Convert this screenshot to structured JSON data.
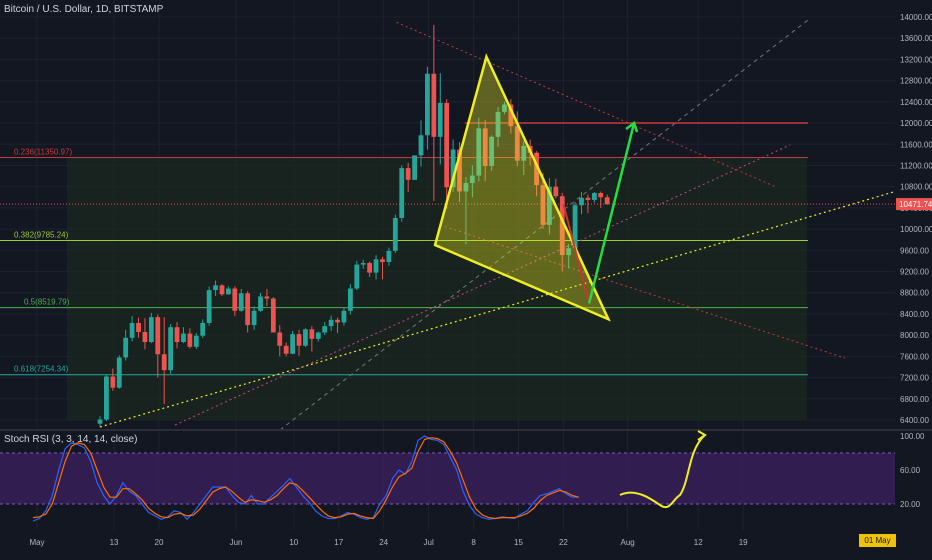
{
  "header": {
    "title": "Bitcoin / U.S. Dollar, 1D, BITSTAMP"
  },
  "stoch": {
    "title": "Stoch RSI (3, 3, 14, 14, close)"
  },
  "date_badge": "01 May '20",
  "colors": {
    "bg": "#131722",
    "up": "#26a69a",
    "down": "#ef5350",
    "grid": "#1e2230",
    "triangle": "#eeee22",
    "arrow_up": "#22dd44",
    "arrow_down": "#cc3333",
    "stoch_k": "#2962ff",
    "stoch_d": "#ff6d00",
    "stoch_band": "#3a1f5c",
    "price_label": "#ef5350"
  },
  "chart_data": [
    {
      "type": "candlestick",
      "title": "Bitcoin / U.S. Dollar, 1D, BITSTAMP",
      "ylim": [
        6200,
        14200
      ],
      "y_ticks": [
        6400,
        6800,
        7200,
        7600,
        8000,
        8400,
        8800,
        9200,
        9600,
        10000,
        10400,
        10800,
        11200,
        11600,
        12000,
        12400,
        12800,
        13200,
        13600,
        14000
      ],
      "x_ticks": [
        "May",
        "13",
        "20",
        "Jun",
        "10",
        "17",
        "24",
        "Jul",
        "8",
        "15",
        "22",
        "Aug",
        "12",
        "19"
      ],
      "current_price_label": "10471.74",
      "fib_levels": [
        {
          "label": "0.236(11350.97)",
          "value": 11350.97
        },
        {
          "label": "0.382(9785.24)",
          "value": 9785.24
        },
        {
          "label": "0.5(8519.79)",
          "value": 8519.79
        },
        {
          "label": "0.618(7254.34)",
          "value": 7254.34
        }
      ],
      "candles_ohlc": [
        [
          6330,
          6470,
          6280,
          6410
        ],
        [
          6410,
          7250,
          6380,
          7220
        ],
        [
          7220,
          7370,
          6950,
          7010
        ],
        [
          7010,
          7620,
          6990,
          7580
        ],
        [
          7580,
          8100,
          7520,
          7950
        ],
        [
          7950,
          8360,
          7880,
          8230
        ],
        [
          8230,
          8330,
          7950,
          8060
        ],
        [
          8060,
          8320,
          7730,
          7870
        ],
        [
          7870,
          8420,
          7850,
          8340
        ],
        [
          8340,
          8390,
          7200,
          7640
        ],
        [
          7640,
          8340,
          6700,
          7340
        ],
        [
          7340,
          8210,
          7270,
          8150
        ],
        [
          8150,
          8250,
          7750,
          7870
        ],
        [
          7870,
          8150,
          7850,
          8030
        ],
        [
          8030,
          8130,
          7750,
          7780
        ],
        [
          7780,
          8040,
          7740,
          7990
        ],
        [
          7990,
          8300,
          7950,
          8230
        ],
        [
          8230,
          8920,
          8180,
          8850
        ],
        [
          8850,
          9030,
          8740,
          8940
        ],
        [
          8940,
          8960,
          8740,
          8770
        ],
        [
          8770,
          8920,
          8760,
          8880
        ],
        [
          8880,
          8920,
          8360,
          8460
        ],
        [
          8460,
          8870,
          8440,
          8790
        ],
        [
          8790,
          8830,
          8050,
          8190
        ],
        [
          8190,
          8540,
          8100,
          8460
        ],
        [
          8460,
          8800,
          8440,
          8730
        ],
        [
          8730,
          8870,
          8550,
          8690
        ],
        [
          8690,
          8720,
          8050,
          8050
        ],
        [
          8050,
          8190,
          7600,
          7800
        ],
        [
          7800,
          7860,
          7600,
          7650
        ],
        [
          7650,
          8080,
          7640,
          8020
        ],
        [
          8020,
          8100,
          7610,
          7800
        ],
        [
          7800,
          8130,
          7780,
          8110
        ],
        [
          8110,
          8170,
          7690,
          7930
        ],
        [
          7930,
          8070,
          7880,
          8050
        ],
        [
          8050,
          8250,
          8000,
          8170
        ],
        [
          8170,
          8370,
          8080,
          8290
        ],
        [
          8290,
          8330,
          8040,
          8240
        ],
        [
          8240,
          8520,
          8180,
          8460
        ],
        [
          8460,
          8960,
          8390,
          8880
        ],
        [
          8880,
          9400,
          8850,
          9330
        ],
        [
          9330,
          9420,
          9250,
          9360
        ],
        [
          9360,
          9390,
          9100,
          9180
        ],
        [
          9180,
          9510,
          9050,
          9430
        ],
        [
          9430,
          9480,
          9050,
          9380
        ],
        [
          9380,
          9650,
          9310,
          9590
        ],
        [
          9590,
          10270,
          9550,
          10210
        ],
        [
          10210,
          11200,
          10140,
          11150
        ],
        [
          11150,
          11250,
          10700,
          10930
        ],
        [
          10930,
          11380,
          10930,
          11390
        ],
        [
          11390,
          12050,
          11180,
          11770
        ],
        [
          11770,
          13060,
          11500,
          12930
        ],
        [
          12930,
          13850,
          10530,
          11740
        ],
        [
          11740,
          12940,
          11220,
          12380
        ],
        [
          12380,
          12450,
          10380,
          10790
        ],
        [
          10790,
          11690,
          10700,
          11500
        ],
        [
          11500,
          11640,
          10510,
          10710
        ],
        [
          10710,
          10980,
          9710,
          10870
        ],
        [
          10870,
          11200,
          10600,
          11010
        ],
        [
          11010,
          12100,
          10900,
          11900
        ],
        [
          11900,
          12060,
          10900,
          11190
        ],
        [
          11190,
          11770,
          11100,
          11740
        ],
        [
          11740,
          12300,
          11550,
          12210
        ],
        [
          12210,
          12400,
          12170,
          12350
        ],
        [
          12350,
          12450,
          11800,
          11940
        ],
        [
          11940,
          12220,
          11180,
          11290
        ],
        [
          11290,
          11660,
          11020,
          11570
        ],
        [
          11570,
          11690,
          11200,
          11440
        ],
        [
          11440,
          11470,
          10620,
          10830
        ],
        [
          10830,
          11060,
          10010,
          10080
        ],
        [
          10080,
          10960,
          9900,
          10800
        ],
        [
          10800,
          10950,
          10580,
          10620
        ],
        [
          10620,
          10680,
          9200,
          9510
        ],
        [
          9510,
          9720,
          9260,
          9640
        ],
        [
          9640,
          10510,
          9590,
          10450
        ],
        [
          10450,
          10700,
          10280,
          10590
        ],
        [
          10590,
          10650,
          10300,
          10550
        ],
        [
          10550,
          10700,
          10500,
          10680
        ],
        [
          10680,
          10710,
          10400,
          10600
        ],
        [
          10600,
          10650,
          10460,
          10470
        ]
      ],
      "annotations": {
        "triangle": {
          "top": [
            "2019-07-10",
            13250
          ],
          "left": [
            "2019-07-02",
            9700
          ],
          "right": [
            "2019-07-29",
            8300
          ]
        },
        "red_arrow": {
          "from": [
            "2019-07-22",
            10470
          ],
          "to": [
            "2019-07-26",
            8600
          ]
        },
        "green_arrow": {
          "from": [
            "2019-07-26",
            8600
          ],
          "to": [
            "2019-08-02",
            12000
          ]
        },
        "horizontal_red_level": 12000,
        "resistance_descending": {
          "from": [
            "2019-06-26",
            13900
          ],
          "to": [
            "2019-08-24",
            10800
          ]
        }
      }
    },
    {
      "type": "line",
      "title": "Stoch RSI (3, 3, 14, 14, close)",
      "ylim": [
        0,
        100
      ],
      "y_ticks": [
        20.0,
        60.0,
        100.0
      ],
      "bands": [
        20,
        80
      ],
      "series": [
        {
          "values": [
            0,
            3,
            12,
            30,
            60,
            85,
            92,
            90,
            86,
            70,
            45,
            30,
            20,
            30,
            45,
            35,
            30,
            20,
            10,
            6,
            2,
            5,
            12,
            10,
            2,
            10,
            20,
            30,
            40,
            40,
            40,
            30,
            22,
            20,
            30,
            20,
            20,
            28,
            35,
            42,
            50,
            40,
            30,
            22,
            12,
            6,
            3,
            3,
            6,
            10,
            8,
            4,
            2,
            4,
            20,
            30,
            50,
            60,
            55,
            70,
            95,
            100,
            96,
            95,
            90,
            75,
            60,
            35,
            18,
            8,
            4,
            2,
            3,
            5,
            4,
            3,
            8,
            12,
            22,
            30,
            32,
            35,
            38,
            32,
            28,
            28
          ]
        },
        {
          "values": [
            4,
            5,
            8,
            20,
            45,
            70,
            88,
            92,
            90,
            80,
            60,
            40,
            28,
            28,
            38,
            38,
            32,
            25,
            15,
            9,
            5,
            4,
            8,
            9,
            6,
            7,
            14,
            24,
            34,
            38,
            40,
            35,
            28,
            22,
            25,
            24,
            22,
            25,
            30,
            38,
            45,
            43,
            36,
            28,
            20,
            12,
            6,
            4,
            5,
            8,
            9,
            6,
            4,
            3,
            12,
            25,
            40,
            52,
            56,
            62,
            82,
            96,
            98,
            97,
            93,
            82,
            68,
            48,
            28,
            14,
            7,
            4,
            3,
            4,
            4,
            4,
            6,
            9,
            15,
            24,
            30,
            33,
            36,
            34,
            30,
            28
          ]
        }
      ],
      "hand_drawn_continuation": true
    }
  ]
}
